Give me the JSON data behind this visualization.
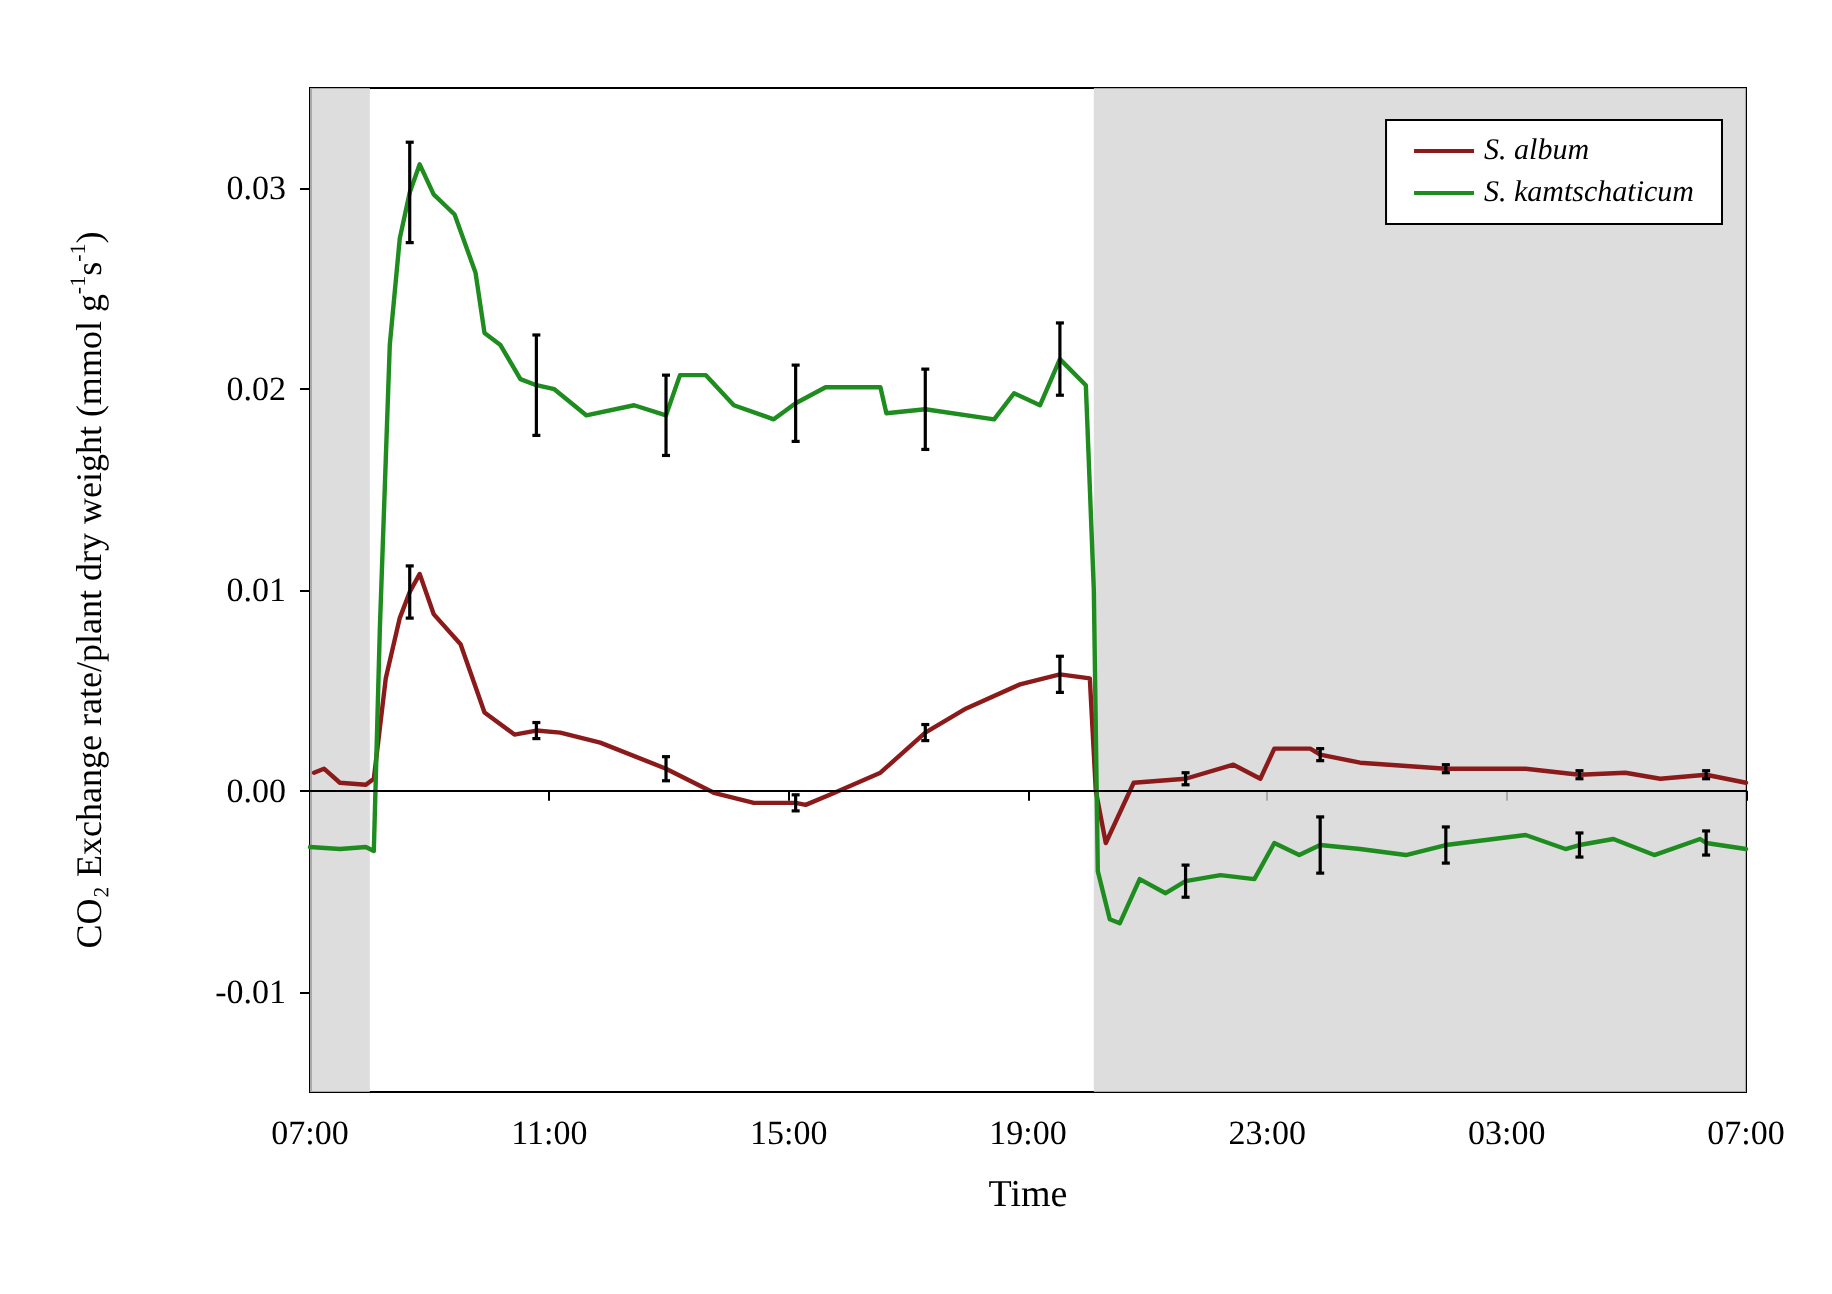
{
  "chart_data": {
    "type": "line",
    "xlabel": "Time",
    "ylabel": "CO₂ Exchange rate/plant dry weight (mmol g$^{-1}$s$^{-1}$)",
    "xlim": [
      "2000-01-01T07:00",
      "2000-01-02T07:00"
    ],
    "xticks": [
      {
        "value": "2000-01-01T07:00",
        "label": "07:00"
      },
      {
        "value": "2000-01-01T11:00",
        "label": "11:00"
      },
      {
        "value": "2000-01-01T15:00",
        "label": "15:00"
      },
      {
        "value": "2000-01-01T19:00",
        "label": "19:00"
      },
      {
        "value": "2000-01-01T23:00",
        "label": "23:00"
      },
      {
        "value": "2000-01-02T03:00",
        "label": "03:00"
      },
      {
        "value": "2000-01-02T07:00",
        "label": "07:00"
      }
    ],
    "ylim": [
      -0.015,
      0.035
    ],
    "yticks": [
      {
        "value": -0.01,
        "label": "-0.01"
      },
      {
        "value": 0,
        "label": "0.00"
      },
      {
        "value": 0.01,
        "label": "0.01"
      },
      {
        "value": 0.02,
        "label": "0.02"
      },
      {
        "value": 0.03,
        "label": "0.03"
      }
    ],
    "grid": false,
    "legend": "top right",
    "marker": "none",
    "line_style": "solid",
    "ref_lines": [
      {
        "axis": "y",
        "value": 0,
        "color": "#000000"
      }
    ],
    "bands": [
      {
        "axis": "x",
        "from": "2000-01-01T07:00",
        "to": "2000-01-01T08:00",
        "color": "#d4d4d4"
      },
      {
        "axis": "x",
        "from": "2000-01-01T20:06",
        "to": "2000-01-02T07:00",
        "color": "#d4d4d4"
      }
    ],
    "series": [
      {
        "name": "S. album",
        "color": "#8b1a1a",
        "x": [
          "2000-01-01T07:04",
          "2000-01-01T07:14",
          "2000-01-01T07:30",
          "2000-01-01T07:56",
          "2000-01-01T08:04",
          "2000-01-01T08:16",
          "2000-01-01T08:30",
          "2000-01-01T08:40",
          "2000-01-01T08:50",
          "2000-01-01T09:04",
          "2000-01-01T09:31",
          "2000-01-01T09:55",
          "2000-01-01T10:25",
          "2000-01-01T10:47",
          "2000-01-01T11:11",
          "2000-01-01T11:51",
          "2000-01-01T12:57",
          "2000-01-01T13:45",
          "2000-01-01T14:25",
          "2000-01-01T15:07",
          "2000-01-01T15:17",
          "2000-01-01T15:46",
          "2000-01-01T16:32",
          "2000-01-01T17:17",
          "2000-01-01T17:58",
          "2000-01-01T18:52",
          "2000-01-01T19:32",
          "2000-01-01T20:02",
          "2000-01-01T20:08",
          "2000-01-01T20:18",
          "2000-01-01T20:46",
          "2000-01-01T21:38",
          "2000-01-01T22:26",
          "2000-01-01T22:53",
          "2000-01-01T23:07",
          "2000-01-01T23:43",
          "2000-01-01T23:53",
          "2000-01-02T00:33",
          "2000-01-02T01:59",
          "2000-01-02T03:19",
          "2000-01-02T04:13",
          "2000-01-02T04:59",
          "2000-01-02T05:34",
          "2000-01-02T06:20",
          "2000-01-02T07:00"
        ],
        "values": [
          0.0009,
          0.0011,
          0.0004,
          0.0003,
          0.0006,
          0.0056,
          0.0086,
          0.0099,
          0.0108,
          0.0088,
          0.0073,
          0.0039,
          0.0028,
          0.003,
          0.0029,
          0.0024,
          0.0011,
          -0.0001,
          -0.0006,
          -0.0006,
          -0.0007,
          -0.0001,
          0.0009,
          0.0029,
          0.0041,
          0.0053,
          0.0058,
          0.0056,
          0.0,
          -0.0026,
          0.0004,
          0.0006,
          0.0013,
          0.0006,
          0.0021,
          0.0021,
          0.0018,
          0.0014,
          0.0011,
          0.0011,
          0.0008,
          0.0009,
          0.0006,
          0.0008,
          0.0004
        ],
        "errors": [
          null,
          null,
          null,
          null,
          null,
          null,
          null,
          0.0013,
          null,
          null,
          null,
          null,
          null,
          0.0004,
          null,
          null,
          0.0006,
          null,
          null,
          0.0004,
          null,
          null,
          null,
          0.0004,
          null,
          null,
          0.0009,
          null,
          null,
          null,
          null,
          0.0003,
          null,
          null,
          null,
          null,
          0.0003,
          null,
          0.0002,
          null,
          0.0002,
          null,
          null,
          0.0002,
          null
        ]
      },
      {
        "name": "S. kamtschaticum",
        "color": "#1e8c1e",
        "x": [
          "2000-01-01T07:00",
          "2000-01-01T07:30",
          "2000-01-01T07:56",
          "2000-01-01T08:04",
          "2000-01-01T08:10",
          "2000-01-01T08:20",
          "2000-01-01T08:30",
          "2000-01-01T08:40",
          "2000-01-01T08:50",
          "2000-01-01T09:04",
          "2000-01-01T09:25",
          "2000-01-01T09:46",
          "2000-01-01T09:55",
          "2000-01-01T10:11",
          "2000-01-01T10:31",
          "2000-01-01T10:47",
          "2000-01-01T11:05",
          "2000-01-01T11:37",
          "2000-01-01T12:25",
          "2000-01-01T12:57",
          "2000-01-01T13:11",
          "2000-01-01T13:37",
          "2000-01-01T14:05",
          "2000-01-01T14:45",
          "2000-01-01T15:07",
          "2000-01-01T15:37",
          "2000-01-01T16:32",
          "2000-01-01T16:38",
          "2000-01-01T17:17",
          "2000-01-01T18:26",
          "2000-01-01T18:46",
          "2000-01-01T19:12",
          "2000-01-01T19:32",
          "2000-01-01T19:58",
          "2000-01-01T20:06",
          "2000-01-01T20:10",
          "2000-01-01T20:22",
          "2000-01-01T20:32",
          "2000-01-01T20:52",
          "2000-01-01T21:18",
          "2000-01-01T21:38",
          "2000-01-01T22:13",
          "2000-01-01T22:47",
          "2000-01-01T23:07",
          "2000-01-01T23:32",
          "2000-01-01T23:53",
          "2000-01-02T00:33",
          "2000-01-02T01:19",
          "2000-01-02T01:59",
          "2000-01-02T02:47",
          "2000-01-02T03:19",
          "2000-01-02T03:59",
          "2000-01-02T04:13",
          "2000-01-02T04:47",
          "2000-01-02T05:28",
          "2000-01-02T06:14",
          "2000-01-02T06:20",
          "2000-01-02T07:00"
        ],
        "values": [
          -0.0028,
          -0.0029,
          -0.0028,
          -0.003,
          0.008,
          0.0222,
          0.0275,
          0.0298,
          0.0312,
          0.0297,
          0.0287,
          0.0258,
          0.0228,
          0.0222,
          0.0205,
          0.0202,
          0.02,
          0.0187,
          0.0192,
          0.0187,
          0.0207,
          0.0207,
          0.0192,
          0.0185,
          0.0193,
          0.0201,
          0.0201,
          0.0188,
          0.019,
          0.0185,
          0.0198,
          0.0192,
          0.0215,
          0.0202,
          0.01,
          -0.004,
          -0.0064,
          -0.0066,
          -0.0044,
          -0.0051,
          -0.0045,
          -0.0042,
          -0.0044,
          -0.0026,
          -0.0032,
          -0.0027,
          -0.0029,
          -0.0032,
          -0.0027,
          -0.0024,
          -0.0022,
          -0.0029,
          -0.0027,
          -0.0024,
          -0.0032,
          -0.0024,
          -0.0026,
          -0.0029
        ],
        "errors": [
          null,
          null,
          null,
          null,
          null,
          null,
          null,
          0.0025,
          null,
          null,
          null,
          null,
          null,
          null,
          null,
          0.0025,
          null,
          null,
          null,
          0.002,
          null,
          null,
          null,
          null,
          0.0019,
          null,
          null,
          null,
          0.002,
          null,
          null,
          null,
          0.0018,
          null,
          null,
          null,
          null,
          null,
          null,
          null,
          0.0008,
          null,
          null,
          null,
          null,
          0.0014,
          null,
          null,
          0.0009,
          null,
          null,
          null,
          0.0006,
          null,
          null,
          null,
          0.0006,
          null
        ]
      }
    ]
  }
}
